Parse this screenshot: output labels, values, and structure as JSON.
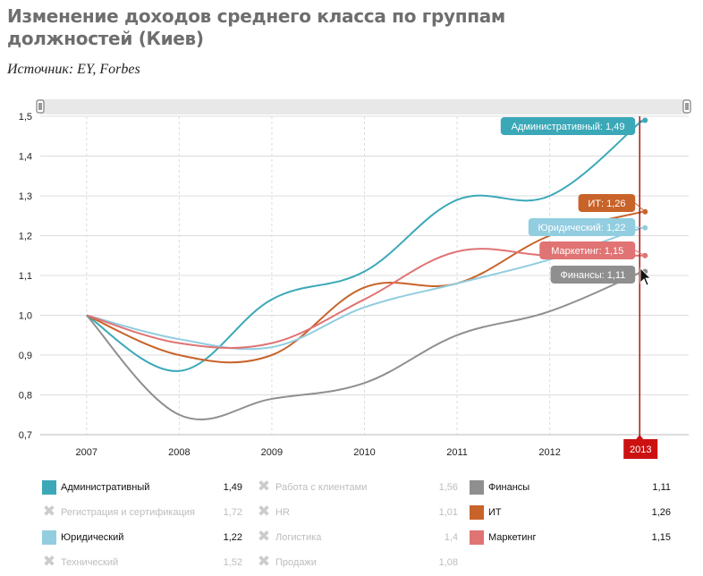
{
  "header": {
    "title": "Изменение доходов среднего класса по группам должностей (Киев)",
    "source": "Источник: EY, Forbes"
  },
  "colors": {
    "admin": "#3ba8b8",
    "it": "#c8632a",
    "legal": "#92cde0",
    "marketing": "#e07373",
    "finance": "#8f8f8f",
    "grid": "#dcdcdc",
    "cursor_line": "#b01818",
    "cursor_label": "#cc1111",
    "range_bar": "#e8e8e8"
  },
  "chart_data": {
    "type": "line",
    "x": [
      2007,
      2008,
      2009,
      2010,
      2011,
      2012,
      2013
    ],
    "x_tick_labels": [
      "2007",
      "2008",
      "2009",
      "2010",
      "2011",
      "2012"
    ],
    "x_range": [
      2006.5,
      2013.5
    ],
    "ylim": [
      0.7,
      1.5
    ],
    "y_tick_labels": [
      "0,7",
      "0,8",
      "0,9",
      "1,0",
      "1,1",
      "1,2",
      "1,3",
      "1,4",
      "1,5"
    ],
    "grid": true,
    "cursor": {
      "x": 2013,
      "label": "2013"
    },
    "series": [
      {
        "key": "admin",
        "color": "#3ba8b8",
        "points": [
          [
            2007,
            1.0
          ],
          [
            2008,
            0.86
          ],
          [
            2009,
            1.04
          ],
          [
            2010,
            1.11
          ],
          [
            2011,
            1.29
          ],
          [
            2012,
            1.3
          ],
          [
            2013,
            1.49
          ]
        ],
        "tooltip": "Административный: 1,49"
      },
      {
        "key": "it",
        "color": "#c8632a",
        "points": [
          [
            2007,
            1.0
          ],
          [
            2008,
            0.9
          ],
          [
            2009,
            0.9
          ],
          [
            2010,
            1.07
          ],
          [
            2011,
            1.08
          ],
          [
            2012,
            1.2
          ],
          [
            2013,
            1.26
          ]
        ],
        "tooltip": "ИТ: 1,26"
      },
      {
        "key": "legal",
        "color": "#92cde0",
        "points": [
          [
            2007,
            1.0
          ],
          [
            2008,
            0.94
          ],
          [
            2009,
            0.92
          ],
          [
            2010,
            1.02
          ],
          [
            2011,
            1.08
          ],
          [
            2012,
            1.14
          ],
          [
            2013,
            1.22
          ]
        ],
        "tooltip": "Юридический: 1,22"
      },
      {
        "key": "marketing",
        "color": "#e07373",
        "points": [
          [
            2007,
            1.0
          ],
          [
            2008,
            0.93
          ],
          [
            2009,
            0.93
          ],
          [
            2010,
            1.04
          ],
          [
            2011,
            1.16
          ],
          [
            2012,
            1.15
          ],
          [
            2013,
            1.15
          ]
        ],
        "tooltip": "Маркетинг: 1,15"
      },
      {
        "key": "finance",
        "color": "#8f8f8f",
        "points": [
          [
            2007,
            1.0
          ],
          [
            2008,
            0.75
          ],
          [
            2009,
            0.79
          ],
          [
            2010,
            0.83
          ],
          [
            2011,
            0.95
          ],
          [
            2012,
            1.01
          ],
          [
            2013,
            1.11
          ]
        ],
        "tooltip": "Финансы: 1,11"
      }
    ]
  },
  "legend": [
    {
      "label": "Административный",
      "value": "1,49",
      "color": "#3ba8b8",
      "active": true
    },
    {
      "label": "Регистрация и сертификация",
      "value": "1,72",
      "active": false
    },
    {
      "label": "Юридический",
      "value": "1,22",
      "color": "#92cde0",
      "active": true
    },
    {
      "label": "Технический",
      "value": "1,52",
      "active": false
    },
    {
      "label": "Работа с клиентами",
      "value": "1,56",
      "active": false
    },
    {
      "label": "HR",
      "value": "1,01",
      "active": false
    },
    {
      "label": "Логистика",
      "value": "1,4",
      "active": false
    },
    {
      "label": "Продажи",
      "value": "1,08",
      "active": false
    },
    {
      "label": "Финансы",
      "value": "1,11",
      "color": "#8f8f8f",
      "active": true
    },
    {
      "label": "ИТ",
      "value": "1,26",
      "color": "#c8632a",
      "active": true
    },
    {
      "label": "Маркетинг",
      "value": "1,15",
      "color": "#e07373",
      "active": true
    }
  ]
}
